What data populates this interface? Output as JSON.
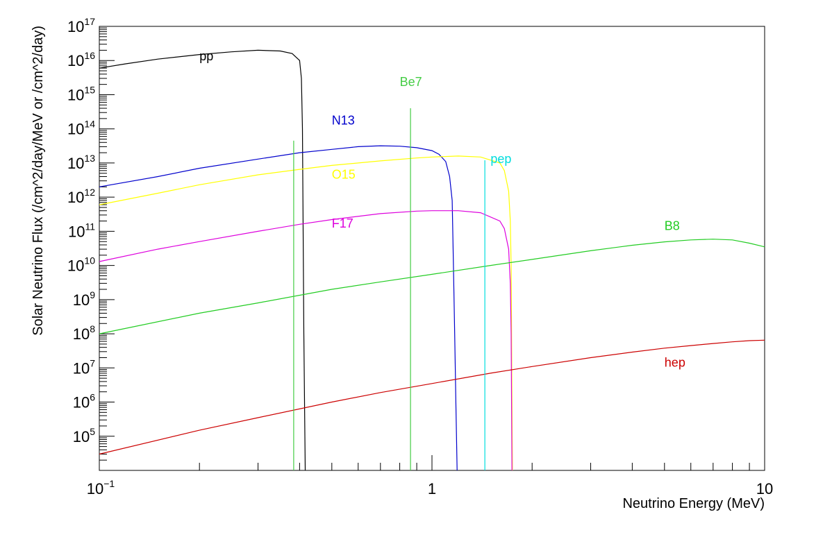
{
  "chart_data": {
    "type": "line",
    "title": "",
    "xlabel": "Neutrino Energy (MeV)",
    "ylabel": "Solar Neutrino Flux (/cm^2/day/MeV  or  /cm^2/day)",
    "xscale": "log",
    "yscale": "log",
    "xlim": [
      0.1,
      10
    ],
    "ylim": [
      10000,
      1e+17
    ],
    "x_ticks": [
      {
        "value": 0.1,
        "base": "10",
        "exp": "−1"
      },
      {
        "value": 1,
        "base": "1",
        "exp": ""
      },
      {
        "value": 10,
        "base": "10",
        "exp": ""
      }
    ],
    "y_ticks": [
      {
        "value": 100000.0,
        "base": "10",
        "exp": "5"
      },
      {
        "value": 1000000.0,
        "base": "10",
        "exp": "6"
      },
      {
        "value": 10000000.0,
        "base": "10",
        "exp": "7"
      },
      {
        "value": 100000000.0,
        "base": "10",
        "exp": "8"
      },
      {
        "value": 1000000000.0,
        "base": "10",
        "exp": "9"
      },
      {
        "value": 10000000000.0,
        "base": "10",
        "exp": "10"
      },
      {
        "value": 100000000000.0,
        "base": "10",
        "exp": "11"
      },
      {
        "value": 1000000000000.0,
        "base": "10",
        "exp": "12"
      },
      {
        "value": 10000000000000.0,
        "base": "10",
        "exp": "13"
      },
      {
        "value": 100000000000000.0,
        "base": "10",
        "exp": "14"
      },
      {
        "value": 1000000000000000.0,
        "base": "10",
        "exp": "15"
      },
      {
        "value": 1e+16,
        "base": "10",
        "exp": "16"
      },
      {
        "value": 1e+17,
        "base": "10",
        "exp": "17"
      }
    ],
    "grid": false,
    "legend": "none",
    "series": [
      {
        "name": "pp",
        "color": "#000000",
        "kind": "curve",
        "label_at": [
          0.2,
          1e+16
        ],
        "points": [
          [
            0.1,
            6000000000000000.0
          ],
          [
            0.12,
            8000000000000000.0
          ],
          [
            0.15,
            1.1e+16
          ],
          [
            0.2,
            1.5e+16
          ],
          [
            0.25,
            1.8e+16
          ],
          [
            0.3,
            2e+16
          ],
          [
            0.35,
            1.9e+16
          ],
          [
            0.38,
            1.6e+16
          ],
          [
            0.4,
            1e+16
          ],
          [
            0.405,
            3000000000000000.0
          ],
          [
            0.408,
            100000000000000.0
          ],
          [
            0.41,
            100000000000.0
          ],
          [
            0.412,
            100000000.0
          ],
          [
            0.415,
            100000.0
          ],
          [
            0.416,
            10000
          ]
        ]
      },
      {
        "name": "N13",
        "color": "#0000cc",
        "kind": "curve",
        "label_at": [
          0.5,
          135000000000000.0
        ],
        "points": [
          [
            0.1,
            2000000000000.0
          ],
          [
            0.15,
            4000000000000.0
          ],
          [
            0.2,
            7000000000000.0
          ],
          [
            0.3,
            13000000000000.0
          ],
          [
            0.4,
            20000000000000.0
          ],
          [
            0.5,
            25000000000000.0
          ],
          [
            0.6,
            30000000000000.0
          ],
          [
            0.7,
            32000000000000.0
          ],
          [
            0.8,
            31000000000000.0
          ],
          [
            0.9,
            28000000000000.0
          ],
          [
            1.0,
            23000000000000.0
          ],
          [
            1.05,
            18000000000000.0
          ],
          [
            1.1,
            11000000000000.0
          ],
          [
            1.13,
            4000000000000.0
          ],
          [
            1.15,
            800000000000.0
          ],
          [
            1.16,
            10000000000.0
          ],
          [
            1.17,
            100000000.0
          ],
          [
            1.18,
            1000000.0
          ],
          [
            1.19,
            10000
          ]
        ]
      },
      {
        "name": "O15",
        "color": "#ffff00",
        "kind": "curve",
        "label_at": [
          0.5,
          3500000000000.0
        ],
        "points": [
          [
            0.1,
            600000000000.0
          ],
          [
            0.15,
            1300000000000.0
          ],
          [
            0.2,
            2300000000000.0
          ],
          [
            0.3,
            4500000000000.0
          ],
          [
            0.4,
            6500000000000.0
          ],
          [
            0.5,
            8500000000000.0
          ],
          [
            0.7,
            11500000000000.0
          ],
          [
            0.9,
            14000000000000.0
          ],
          [
            1.0,
            15000000000000.0
          ],
          [
            1.2,
            16000000000000.0
          ],
          [
            1.4,
            15000000000000.0
          ],
          [
            1.6,
            10000000000000.0
          ],
          [
            1.65,
            6000000000000.0
          ],
          [
            1.7,
            1500000000000.0
          ],
          [
            1.72,
            200000000000.0
          ],
          [
            1.73,
            10000000000.0
          ],
          [
            1.735,
            100000000.0
          ],
          [
            1.74,
            1000000.0
          ],
          [
            1.745,
            10000
          ]
        ]
      },
      {
        "name": "F17",
        "color": "#dd00dd",
        "kind": "curve",
        "label_at": [
          0.5,
          130000000000.0
        ],
        "points": [
          [
            0.1,
            13000000000.0
          ],
          [
            0.15,
            30000000000.0
          ],
          [
            0.2,
            50000000000.0
          ],
          [
            0.3,
            100000000000.0
          ],
          [
            0.4,
            160000000000.0
          ],
          [
            0.5,
            220000000000.0
          ],
          [
            0.7,
            330000000000.0
          ],
          [
            0.9,
            390000000000.0
          ],
          [
            1.0,
            400000000000.0
          ],
          [
            1.2,
            400000000000.0
          ],
          [
            1.4,
            350000000000.0
          ],
          [
            1.6,
            200000000000.0
          ],
          [
            1.65,
            120000000000.0
          ],
          [
            1.7,
            30000000000.0
          ],
          [
            1.72,
            3000000000.0
          ],
          [
            1.73,
            100000000.0
          ],
          [
            1.735,
            1000000.0
          ],
          [
            1.74,
            10000
          ]
        ]
      },
      {
        "name": "B8",
        "color": "#22cc22",
        "kind": "curve",
        "label_at": [
          5.0,
          110000000000.0
        ],
        "points": [
          [
            0.1,
            100000000.0
          ],
          [
            0.2,
            400000000.0
          ],
          [
            0.3,
            800000000.0
          ],
          [
            0.5,
            2000000000.0
          ],
          [
            0.7,
            3300000000.0
          ],
          [
            1.0,
            5500000000.0
          ],
          [
            1.5,
            10000000000.0
          ],
          [
            2.0,
            15000000000.0
          ],
          [
            3.0,
            27000000000.0
          ],
          [
            4.0,
            39000000000.0
          ],
          [
            5.0,
            49000000000.0
          ],
          [
            6.0,
            56000000000.0
          ],
          [
            7.0,
            59000000000.0
          ],
          [
            8.0,
            56000000000.0
          ],
          [
            9.0,
            45000000000.0
          ],
          [
            10.0,
            35000000000.0
          ]
        ]
      },
      {
        "name": "hep",
        "color": "#cc0000",
        "kind": "curve",
        "label_at": [
          5.0,
          11000000.0
        ],
        "points": [
          [
            0.1,
            30000.0
          ],
          [
            0.2,
            150000.0
          ],
          [
            0.3,
            350000.0
          ],
          [
            0.5,
            1000000.0
          ],
          [
            0.7,
            1900000.0
          ],
          [
            1.0,
            3500000.0
          ],
          [
            1.5,
            7000000.0
          ],
          [
            2.0,
            11000000.0
          ],
          [
            3.0,
            20000000.0
          ],
          [
            4.0,
            29000000.0
          ],
          [
            5.0,
            38000000.0
          ],
          [
            6.0,
            45000000.0
          ],
          [
            7.0,
            52000000.0
          ],
          [
            8.0,
            58000000.0
          ],
          [
            9.0,
            63000000.0
          ],
          [
            10.0,
            65000000.0
          ]
        ]
      },
      {
        "name": "Be7",
        "color": "#44cc44",
        "kind": "lines",
        "label_at": [
          0.8,
          1800000000000000.0
        ],
        "lines": [
          {
            "x": 0.384,
            "y": 45000000000000.0
          },
          {
            "x": 0.862,
            "y": 400000000000000.0
          }
        ]
      },
      {
        "name": "pep",
        "color": "#00dddd",
        "kind": "lines",
        "label_at": [
          1.5,
          10000000000000.0
        ],
        "lines": [
          {
            "x": 1.442,
            "y": 12000000000000.0
          }
        ]
      }
    ]
  }
}
